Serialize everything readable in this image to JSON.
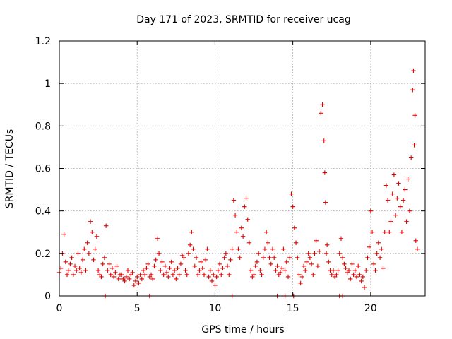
{
  "chart_data": {
    "type": "scatter",
    "title": "Day 171 of 2023, SRMTID for receiver ucag",
    "xlabel": "GPS time / hours",
    "ylabel": "SRMTID / TECUs",
    "xlim": [
      0,
      23.5
    ],
    "ylim": [
      0,
      1.2
    ],
    "xticks": [
      0,
      5,
      10,
      15,
      20
    ],
    "yticks": [
      0,
      0.2,
      0.4,
      0.6,
      0.8,
      1.0,
      1.2
    ],
    "xtick_labels": [
      "0",
      "5",
      "10",
      "15",
      "20"
    ],
    "ytick_labels": [
      "0",
      "0.2",
      "0.4",
      "0.6",
      "0.8",
      "1",
      "1.2"
    ],
    "grid": true,
    "marker": "plus",
    "color": "#e00000",
    "series": [
      {
        "name": "SRMTID",
        "x": [
          0.0,
          0.1,
          0.2,
          0.3,
          0.4,
          0.5,
          0.6,
          0.7,
          0.8,
          0.9,
          1.0,
          1.1,
          1.2,
          1.3,
          1.4,
          1.5,
          1.6,
          1.7,
          1.8,
          1.9,
          2.0,
          2.1,
          2.2,
          2.3,
          2.4,
          2.5,
          2.6,
          2.7,
          2.8,
          2.9,
          3.0,
          3.1,
          3.2,
          3.3,
          3.4,
          3.5,
          3.6,
          3.7,
          3.8,
          3.9,
          4.0,
          4.1,
          4.2,
          4.3,
          4.4,
          4.5,
          4.6,
          4.7,
          4.8,
          4.9,
          5.0,
          5.1,
          5.2,
          5.3,
          5.4,
          5.5,
          5.6,
          5.7,
          5.8,
          5.9,
          6.0,
          6.1,
          6.2,
          6.3,
          6.4,
          6.5,
          6.6,
          6.7,
          6.8,
          6.9,
          7.0,
          7.1,
          7.2,
          7.3,
          7.4,
          7.5,
          7.6,
          7.7,
          7.8,
          7.9,
          8.0,
          8.1,
          8.2,
          8.3,
          8.4,
          8.5,
          8.6,
          8.7,
          8.8,
          8.9,
          9.0,
          9.1,
          9.2,
          9.3,
          9.4,
          9.5,
          9.6,
          9.7,
          9.8,
          9.9,
          10.0,
          10.1,
          10.2,
          10.3,
          10.4,
          10.5,
          10.6,
          10.7,
          10.8,
          10.9,
          11.0,
          11.1,
          11.2,
          11.3,
          11.4,
          11.5,
          11.6,
          11.7,
          11.8,
          11.9,
          12.0,
          12.1,
          12.2,
          12.3,
          12.4,
          12.5,
          12.6,
          12.7,
          12.8,
          12.9,
          13.0,
          13.1,
          13.2,
          13.3,
          13.4,
          13.5,
          13.6,
          13.7,
          13.8,
          13.9,
          14.0,
          14.1,
          14.2,
          14.3,
          14.4,
          14.5,
          14.6,
          14.7,
          14.8,
          14.9,
          15.0,
          15.1,
          15.2,
          15.3,
          15.4,
          15.5,
          15.6,
          15.7,
          15.8,
          15.9,
          16.0,
          16.1,
          16.2,
          16.3,
          16.4,
          16.5,
          16.6,
          16.7,
          16.8,
          16.9,
          17.0,
          17.05,
          17.1,
          17.15,
          17.2,
          17.3,
          17.4,
          17.5,
          17.6,
          17.7,
          17.8,
          17.9,
          18.0,
          18.1,
          18.2,
          18.3,
          18.4,
          18.5,
          18.6,
          18.7,
          18.8,
          18.9,
          19.0,
          19.1,
          19.2,
          19.3,
          19.4,
          19.5,
          19.6,
          19.7,
          19.8,
          19.9,
          20.0,
          20.1,
          20.2,
          20.3,
          20.4,
          20.5,
          20.6,
          20.7,
          20.8,
          20.9,
          21.0,
          21.1,
          21.2,
          21.3,
          21.4,
          21.5,
          21.6,
          21.7,
          21.8,
          21.9,
          22.0,
          22.1,
          22.2,
          22.3,
          22.4,
          22.5,
          22.6,
          22.7,
          22.75,
          22.8,
          22.85,
          22.9,
          23.0,
          2.95,
          5.8,
          11.1,
          14.0,
          14.5,
          15.05,
          18.0,
          18.2
        ],
        "y": [
          0.11,
          0.13,
          0.2,
          0.29,
          0.16,
          0.1,
          0.12,
          0.15,
          0.18,
          0.1,
          0.14,
          0.12,
          0.2,
          0.13,
          0.11,
          0.17,
          0.22,
          0.12,
          0.25,
          0.2,
          0.35,
          0.3,
          0.17,
          0.22,
          0.28,
          0.12,
          0.1,
          0.09,
          0.15,
          0.18,
          0.33,
          0.12,
          0.15,
          0.1,
          0.13,
          0.09,
          0.11,
          0.14,
          0.08,
          0.1,
          0.1,
          0.08,
          0.07,
          0.09,
          0.12,
          0.08,
          0.1,
          0.11,
          0.05,
          0.07,
          0.09,
          0.06,
          0.1,
          0.08,
          0.12,
          0.1,
          0.13,
          0.15,
          0.09,
          0.1,
          0.08,
          0.14,
          0.17,
          0.27,
          0.2,
          0.12,
          0.16,
          0.1,
          0.14,
          0.11,
          0.09,
          0.13,
          0.16,
          0.1,
          0.12,
          0.08,
          0.13,
          0.1,
          0.15,
          0.19,
          0.18,
          0.12,
          0.1,
          0.2,
          0.24,
          0.3,
          0.22,
          0.14,
          0.18,
          0.1,
          0.12,
          0.16,
          0.13,
          0.1,
          0.17,
          0.22,
          0.09,
          0.12,
          0.07,
          0.1,
          0.05,
          0.09,
          0.12,
          0.15,
          0.1,
          0.13,
          0.18,
          0.2,
          0.14,
          0.1,
          0.17,
          0.22,
          0.45,
          0.38,
          0.3,
          0.22,
          0.18,
          0.32,
          0.28,
          0.42,
          0.46,
          0.36,
          0.25,
          0.12,
          0.09,
          0.1,
          0.14,
          0.16,
          0.2,
          0.12,
          0.1,
          0.18,
          0.22,
          0.3,
          0.25,
          0.18,
          0.15,
          0.22,
          0.18,
          0.12,
          0.14,
          0.1,
          0.11,
          0.13,
          0.22,
          0.12,
          0.16,
          0.09,
          0.18,
          0.48,
          0.42,
          0.32,
          0.25,
          0.18,
          0.1,
          0.06,
          0.09,
          0.14,
          0.12,
          0.16,
          0.2,
          0.18,
          0.15,
          0.1,
          0.2,
          0.26,
          0.14,
          0.21,
          0.86,
          0.9,
          0.73,
          0.58,
          0.44,
          0.2,
          0.24,
          0.16,
          0.12,
          0.1,
          0.12,
          0.09,
          0.1,
          0.12,
          0.2,
          0.27,
          0.18,
          0.15,
          0.13,
          0.11,
          0.12,
          0.08,
          0.15,
          0.1,
          0.12,
          0.09,
          0.14,
          0.1,
          0.07,
          0.09,
          0.04,
          0.12,
          0.18,
          0.23,
          0.4,
          0.3,
          0.15,
          0.12,
          0.2,
          0.25,
          0.18,
          0.22,
          0.13,
          0.3,
          0.52,
          0.45,
          0.3,
          0.35,
          0.48,
          0.57,
          0.38,
          0.46,
          0.53,
          0.42,
          0.3,
          0.45,
          0.5,
          0.35,
          0.55,
          0.4,
          0.65,
          0.97,
          1.06,
          0.71,
          0.85,
          0.26,
          0.22,
          0.0,
          0.0,
          0.0,
          0.0,
          0.0,
          0.0,
          0.0,
          0.0
        ]
      }
    ]
  }
}
